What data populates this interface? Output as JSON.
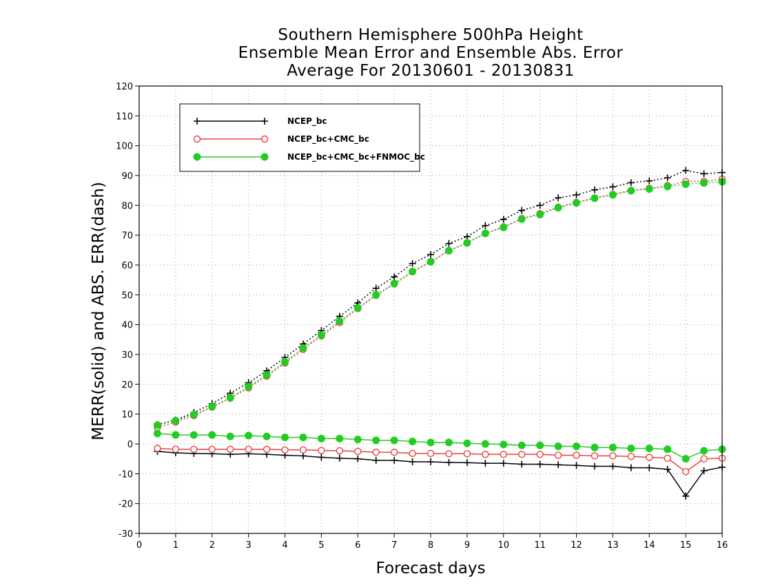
{
  "chart_data": {
    "type": "line",
    "title_lines": [
      "Southern Hemisphere 500hPa Height",
      "Ensemble Mean Error and Ensemble Abs. Error",
      "Average For 20130601 - 20130831"
    ],
    "xlabel": "Forecast days",
    "ylabel": "MERR(solid) and ABS. ERR(dash)",
    "xlim": [
      0,
      16
    ],
    "ylim": [
      -30,
      120
    ],
    "xticks": [
      0,
      1,
      2,
      3,
      4,
      5,
      6,
      7,
      8,
      9,
      10,
      11,
      12,
      13,
      14,
      15,
      16
    ],
    "yticks": [
      -30,
      -20,
      -10,
      0,
      10,
      20,
      30,
      40,
      50,
      60,
      70,
      80,
      90,
      100,
      110,
      120
    ],
    "grid": true,
    "legend_position": "top-left",
    "x": [
      0.5,
      1,
      1.5,
      2,
      2.5,
      3,
      3.5,
      4,
      4.5,
      5,
      5.5,
      6,
      6.5,
      7,
      7.5,
      8,
      8.5,
      9,
      9.5,
      10,
      10.5,
      11,
      11.5,
      12,
      12.5,
      13,
      13.5,
      14,
      14.5,
      15,
      15.5,
      16
    ],
    "series": [
      {
        "name": "NCEP_bc",
        "color": "#000000",
        "marker": "plus",
        "merr": [
          -2.5,
          -3,
          -3.2,
          -3.3,
          -3.5,
          -3.3,
          -3.5,
          -3.8,
          -4,
          -4.5,
          -4.8,
          -5,
          -5.5,
          -5.5,
          -6,
          -6,
          -6.2,
          -6.3,
          -6.5,
          -6.5,
          -6.8,
          -6.8,
          -7,
          -7.2,
          -7.5,
          -7.5,
          -8,
          -8,
          -8.5,
          -17.5,
          -9,
          -7.8
        ],
        "abs": [
          6.5,
          8,
          10.5,
          13.5,
          17,
          20.5,
          24.5,
          29,
          33.5,
          38,
          42.8,
          47.3,
          52.2,
          56,
          60.5,
          63.5,
          67.2,
          69.5,
          73.2,
          75.3,
          78.3,
          80,
          82.5,
          83.5,
          85.2,
          86.2,
          87.6,
          88.2,
          89.2,
          91.7,
          90.6,
          91
        ]
      },
      {
        "name": "NCEP_bc+CMC_bc",
        "color": "#e8403c",
        "marker": "open-circle",
        "merr": [
          -1.5,
          -1.8,
          -1.8,
          -1.8,
          -1.8,
          -1.8,
          -1.8,
          -2,
          -2,
          -2.2,
          -2.3,
          -2.5,
          -2.8,
          -2.8,
          -3.2,
          -3.2,
          -3.3,
          -3.3,
          -3.5,
          -3.5,
          -3.5,
          -3.5,
          -3.8,
          -3.8,
          -4,
          -4,
          -4.2,
          -4.5,
          -4.8,
          -9.3,
          -5,
          -4.8
        ],
        "abs": [
          5.5,
          7.3,
          9.5,
          12.3,
          15.3,
          18.8,
          22.7,
          27.1,
          31.7,
          36.2,
          40.7,
          45.4,
          49.8,
          53.6,
          57.7,
          61,
          64.8,
          67.4,
          70.6,
          72.8,
          75.6,
          77.2,
          79.4,
          81,
          82.5,
          83.7,
          85,
          85.7,
          86.6,
          88,
          88,
          88.8
        ]
      },
      {
        "name": "NCEP_bc+CMC_bc+FNMOC_bc",
        "color": "#22cc22",
        "marker": "filled-circle",
        "merr": [
          3.5,
          3,
          3,
          3,
          2.5,
          2.8,
          2.5,
          2.2,
          2.2,
          1.8,
          1.8,
          1.5,
          1.2,
          1.2,
          0.8,
          0.5,
          0.5,
          0.2,
          0,
          -0.2,
          -0.5,
          -0.5,
          -0.8,
          -0.8,
          -1.2,
          -1.2,
          -1.5,
          -1.5,
          -1.8,
          -5,
          -2.3,
          -1.8
        ],
        "abs": [
          6.3,
          7.8,
          9.8,
          12.5,
          15.5,
          19.2,
          23.1,
          27.5,
          32.2,
          36.5,
          41.2,
          45.6,
          50,
          53.8,
          57.8,
          61.1,
          64.8,
          67.4,
          70.6,
          72.6,
          75.4,
          76.9,
          79.2,
          80.8,
          82.4,
          83.5,
          84.9,
          85.5,
          86.3,
          87.1,
          87.5,
          87.9
        ]
      }
    ]
  }
}
